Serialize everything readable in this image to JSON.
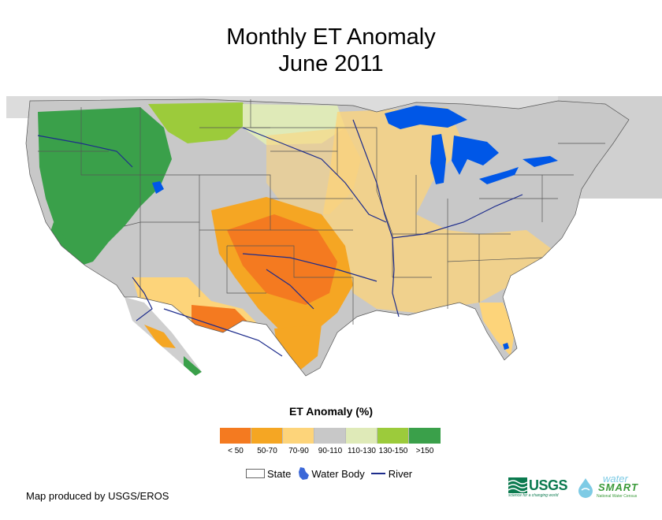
{
  "title": {
    "line1": "Monthly ET Anomaly",
    "line2": "June 2011"
  },
  "legend": {
    "title": "ET Anomaly (%)",
    "classes": [
      {
        "label": "< 50",
        "color": "#f47a20"
      },
      {
        "label": "50-70",
        "color": "#f5a623"
      },
      {
        "label": "70-90",
        "color": "#fdd47a"
      },
      {
        "label": "90-110",
        "color": "#c8c8c8"
      },
      {
        "label": "110-130",
        "color": "#dfeab8"
      },
      {
        "label": "130-150",
        "color": "#9ccb3b"
      },
      {
        "label": ">150",
        "color": "#3aa04a"
      }
    ]
  },
  "map_key": {
    "state": "State",
    "water_body": "Water Body",
    "river": "River"
  },
  "colors": {
    "water": "#0057e7",
    "river": "#1d2c8c",
    "state_border": "#555555"
  },
  "credit": "Map produced by USGS/EROS",
  "logos": {
    "usgs": "USGS",
    "usgs_tagline": "science for a changing world",
    "watersmart_top": "water",
    "watersmart_bottom": "SMART",
    "watersmart_sub": "National Water Census"
  }
}
